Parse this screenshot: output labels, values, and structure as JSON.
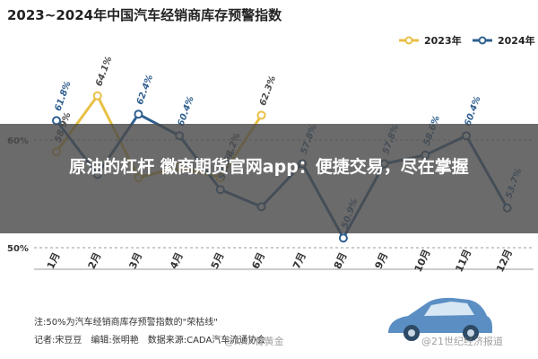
{
  "chart_data": {
    "type": "line",
    "title": "2023~2024年中国汽车经销商库存预警指数",
    "categories": [
      "1月",
      "2月",
      "3月",
      "4月",
      "5月",
      "6月",
      "7月",
      "8月",
      "9月",
      "10月",
      "11月",
      "12月"
    ],
    "series": [
      {
        "name": "2023年",
        "color": "#e9c045",
        "values": [
          58.9,
          64.1,
          56.5,
          57.5,
          56.5,
          62.3,
          null,
          null,
          null,
          null,
          null,
          null
        ],
        "labels": [
          "58.9%",
          "64.1%",
          "",
          "",
          "",
          "62.3%",
          "",
          "",
          "",
          "",
          "",
          ""
        ]
      },
      {
        "name": "2024年",
        "color": "#2f5f8f",
        "values": [
          61.8,
          56.8,
          62.4,
          60.4,
          55.4,
          53.8,
          57.8,
          50.9,
          57.8,
          58.6,
          60.4,
          53.7
        ],
        "labels": [
          "61.8%",
          "",
          "62.4%",
          "60.4%",
          "55.4%",
          "",
          "57.8%",
          "50.9%",
          "57.8%",
          "58.6%",
          "60.4%",
          "53.7%"
        ]
      }
    ],
    "yticks": [
      {
        "value": 60,
        "label": "60%"
      },
      {
        "value": 50,
        "label": "50%"
      }
    ],
    "ylim": [
      48,
      68
    ],
    "legend_position": "top-right",
    "annotation": "58.2%"
  },
  "overlay": {
    "text": "原油的杠杆 徽商期货官网app：便捷交易，尽在掌握"
  },
  "notes": {
    "line1": "注:50%为汽车经销商库存预警指数的\"荣枯线\"",
    "line2": "记者:宋豆豆　编辑:张明艳　数据来源:CADA汽车流通协会"
  },
  "watermarks": {
    "left": "@XXX青黄金",
    "right": "@21世纪经济报道"
  }
}
